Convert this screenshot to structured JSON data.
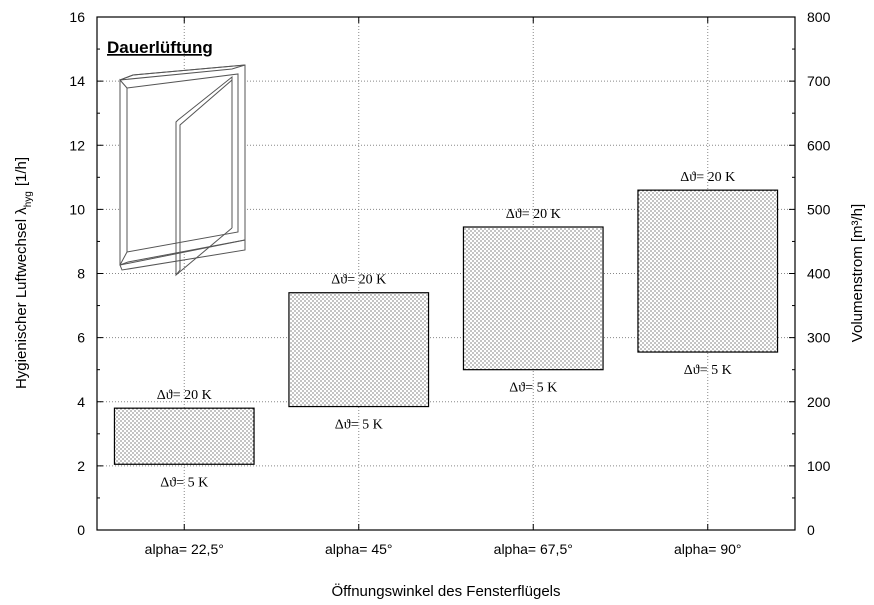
{
  "chart_data": {
    "type": "range_bar",
    "annotation": "Dauerlüftung",
    "x_label": "Öffnungswinkel des Fensterflügels",
    "y_label": {
      "text": "Hygienischer Luftwechsel λ",
      "sub": "hyg",
      "unit": "[1/h]"
    },
    "y2_label": "Volumenstrom [m³/h]",
    "categories": [
      "alpha= 22,5°",
      "alpha= 45°",
      "alpha= 67,5°",
      "alpha= 90°"
    ],
    "series": [
      {
        "name": "Δϑ= 5 K",
        "values": [
          2.05,
          3.85,
          5.0,
          5.55
        ]
      },
      {
        "name": "Δϑ= 20 K",
        "values": [
          3.8,
          7.4,
          9.45,
          10.6
        ]
      }
    ],
    "color": "#000000",
    "ylim": [
      0,
      16
    ],
    "yticks": [
      0,
      2,
      4,
      6,
      8,
      10,
      12,
      14,
      16
    ],
    "y2lim": [
      0,
      800
    ],
    "y2ticks": [
      0,
      100,
      200,
      300,
      400,
      500,
      600,
      700,
      800
    ],
    "grid": true
  }
}
